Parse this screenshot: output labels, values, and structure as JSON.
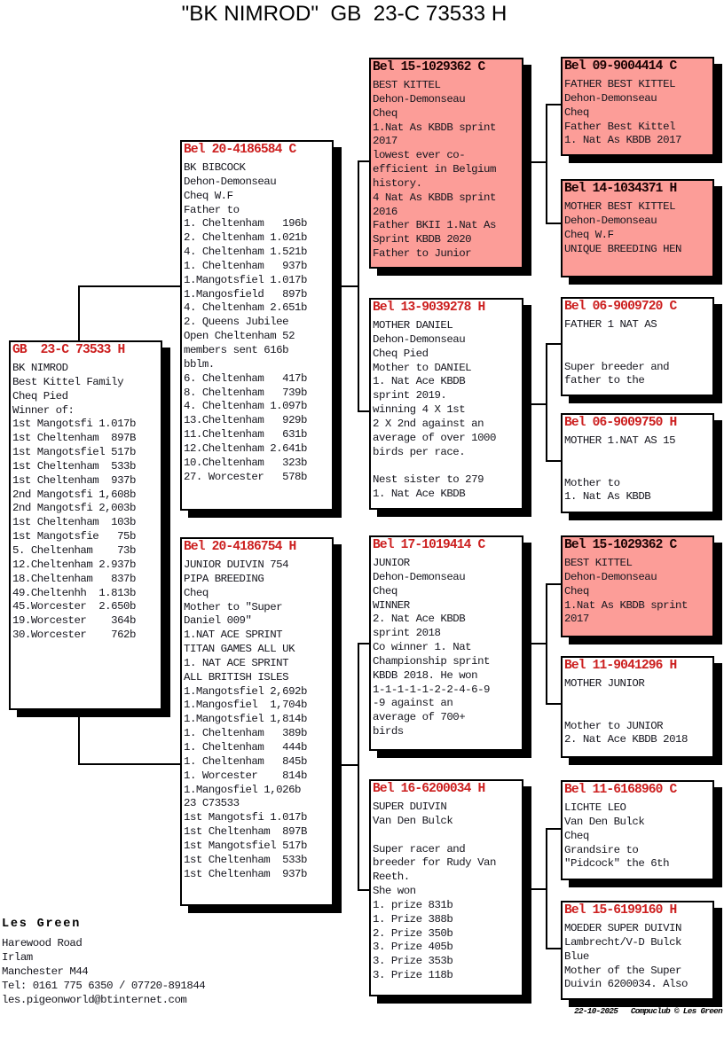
{
  "title": "\"BK NIMROD\"  GB  23-C 73533 H",
  "colors": {
    "highlight_pink": "#fc9d98",
    "ring_red": "#cc1f1f",
    "ring_on_pink": "#1c0303",
    "line_black": "#000000"
  },
  "boxes": {
    "g1": {
      "ring": "GB  23-C 73533 H",
      "highlighted": false,
      "lines": [
        "BK NIMROD",
        "Best Kittel Family",
        "Cheq Pied",
        "Winner of:",
        "1st Mangotsfi 1.017b",
        "1st Cheltenham  897B",
        "1st Mangotsfiel 517b",
        "1st Cheltenham  533b",
        "1st Cheltenham  937b",
        "2nd Mangotsfi 1,608b",
        "2nd Mangotsfi 2,003b",
        "1st Cheltenham  103b",
        "1st Mangotsfie   75b",
        "5. Cheltenham    73b",
        "12.Cheltenham 2.937b",
        "18.Cheltenham   837b",
        "49.Cheltenhh  1.813b",
        "45.Worcester  2.650b",
        "19.Worcester    364b",
        "30.Worcester    762b"
      ]
    },
    "g2a": {
      "ring": "Bel 20-4186584 C",
      "highlighted": false,
      "lines": [
        "BK BIBCOCK",
        "Dehon-Demonseau",
        "Cheq W.F",
        "Father to",
        "1. Cheltenham   196b",
        "2. Cheltenham 1.021b",
        "4. Cheltenham 1.521b",
        "1. Cheltenham   937b",
        "1.Mangotsfiel 1.017b",
        "1.Mangosfield   897b",
        "4. Cheltenham 2.651b",
        "2. Queens Jubilee",
        "Open Cheltenham 52",
        "members sent 616b",
        "bblm.",
        "6. Cheltenham   417b",
        "8. Cheltenham   739b",
        "4. Cheltenham 1.097b",
        "13.Cheltenham   929b",
        "11.Cheltenham   631b",
        "12.Cheltenham 2.641b",
        "10.Cheltenham   323b",
        "27. Worcester   578b"
      ]
    },
    "g2b": {
      "ring": "Bel 20-4186754 H",
      "highlighted": false,
      "lines": [
        "JUNIOR DUIVIN 754",
        "PIPA BREEDING",
        "Cheq",
        "Mother to \"Super",
        "Daniel 009\"",
        "1.NAT ACE SPRINT",
        "TITAN GAMES ALL UK",
        "1. NAT ACE SPRINT",
        "ALL BRITISH ISLES",
        "1.Mangotsfiel 2,692b",
        "1.Mangosfiel  1,704b",
        "1.Mangotsfiel 1,814b",
        "1. Cheltenham   389b",
        "1. Cheltenham   444b",
        "1. Cheltenham   845b",
        "1. Worcester    814b",
        "1.Mangosfiel 1,026b",
        "23 C73533",
        "1st Mangotsfi 1.017b",
        "1st Cheltenham  897B",
        "1st Mangotsfiel 517b",
        "1st Cheltenham  533b",
        "1st Cheltenham  937b"
      ]
    },
    "g3a": {
      "ring": "Bel 15-1029362 C",
      "highlighted": true,
      "lines": [
        "BEST KITTEL",
        "Dehon-Demonseau",
        "Cheq",
        "1.Nat As KBDB sprint",
        "2017",
        "lowest ever co-",
        "efficient in Belgium",
        "history.",
        "4 Nat As KBDB sprint",
        "2016",
        "Father BKII 1.Nat As",
        "Sprint KBDB 2020",
        "Father to Junior"
      ]
    },
    "g3b": {
      "ring": "Bel 13-9039278 H",
      "highlighted": false,
      "lines": [
        "MOTHER DANIEL",
        "Dehon-Demonseau",
        "Cheq Pied",
        "Mother to DANIEL",
        "1. Nat Ace KBDB",
        "sprint 2019.",
        "winning 4 X 1st",
        "2 X 2nd against an",
        "average of over 1000",
        "birds per race.",
        "",
        "Nest sister to 279",
        "1. Nat Ace KBDB"
      ]
    },
    "g3c": {
      "ring": "Bel 17-1019414 C",
      "highlighted": false,
      "lines": [
        "JUNIOR",
        "Dehon-Demonseau",
        "Cheq",
        "WINNER",
        "2. Nat Ace KBDB",
        "sprint 2018",
        "Co winner 1. Nat",
        "Championship sprint",
        "KBDB 2018. He won",
        "1-1-1-1-1-2-2-4-6-9",
        "-9 against an",
        "average of 700+",
        "birds"
      ]
    },
    "g3d": {
      "ring": "Bel 16-6200034 H",
      "highlighted": false,
      "lines": [
        "SUPER DUIVIN",
        "Van Den Bulck",
        "",
        "Super racer and",
        "breeder for Rudy Van",
        "Reeth.",
        "She won",
        "1. prize 831b",
        "1. Prize 388b",
        "2. Prize 350b",
        "3. Prize 405b",
        "3. Prize 353b",
        "3. Prize 118b"
      ]
    },
    "g4a": {
      "ring": "Bel 09-9004414 C",
      "highlighted": true,
      "lines": [
        "FATHER BEST KITTEL",
        "Dehon-Demonseau",
        "Cheq",
        "Father Best Kittel",
        "1. Nat As KBDB 2017"
      ]
    },
    "g4b": {
      "ring": "Bel 14-1034371 H",
      "highlighted": true,
      "lines": [
        "MOTHER BEST KITTEL",
        "Dehon-Demonseau",
        "Cheq W.F",
        "UNIQUE BREEDING HEN"
      ]
    },
    "g4c": {
      "ring": "Bel 06-9009720 C",
      "highlighted": false,
      "lines": [
        "FATHER 1 NAT AS",
        "",
        "",
        "Super breeder and",
        "father to the"
      ]
    },
    "g4d": {
      "ring": "Bel 06-9009750 H",
      "highlighted": false,
      "lines": [
        "MOTHER 1.NAT AS 15",
        "",
        "",
        "Mother to",
        "1. Nat As KBDB"
      ]
    },
    "g4e": {
      "ring": "Bel 15-1029362 C",
      "highlighted": true,
      "lines": [
        "BEST KITTEL",
        "Dehon-Demonseau",
        "Cheq",
        "1.Nat As KBDB sprint",
        "2017"
      ]
    },
    "g4f": {
      "ring": "Bel 11-9041296 H",
      "highlighted": false,
      "lines": [
        "MOTHER JUNIOR",
        "",
        "",
        "Mother to JUNIOR",
        "2. Nat Ace KBDB 2018"
      ]
    },
    "g4g": {
      "ring": "Bel 11-6168960 C",
      "highlighted": false,
      "lines": [
        "LICHTE LEO",
        "Van Den Bulck",
        "Cheq",
        "Grandsire to",
        "\"Pidcock\" the 6th"
      ]
    },
    "g4h": {
      "ring": "Bel 15-6199160 H",
      "highlighted": false,
      "lines": [
        "MOEDER SUPER DUIVIN",
        "Lambrecht/V-D Bulck",
        "Blue",
        "Mother of the Super",
        "Duivin 6200034. Also"
      ]
    }
  },
  "owner": {
    "name": "Les Green",
    "address_lines": [
      "Harewood Road",
      "Irlam",
      "Manchester M44",
      "Tel: 0161 775 6350 / 07720-891844",
      "les.pigeonworld@btinternet.com"
    ]
  },
  "footer": {
    "text": "22-10-2025   Compuclub © Les Green"
  }
}
